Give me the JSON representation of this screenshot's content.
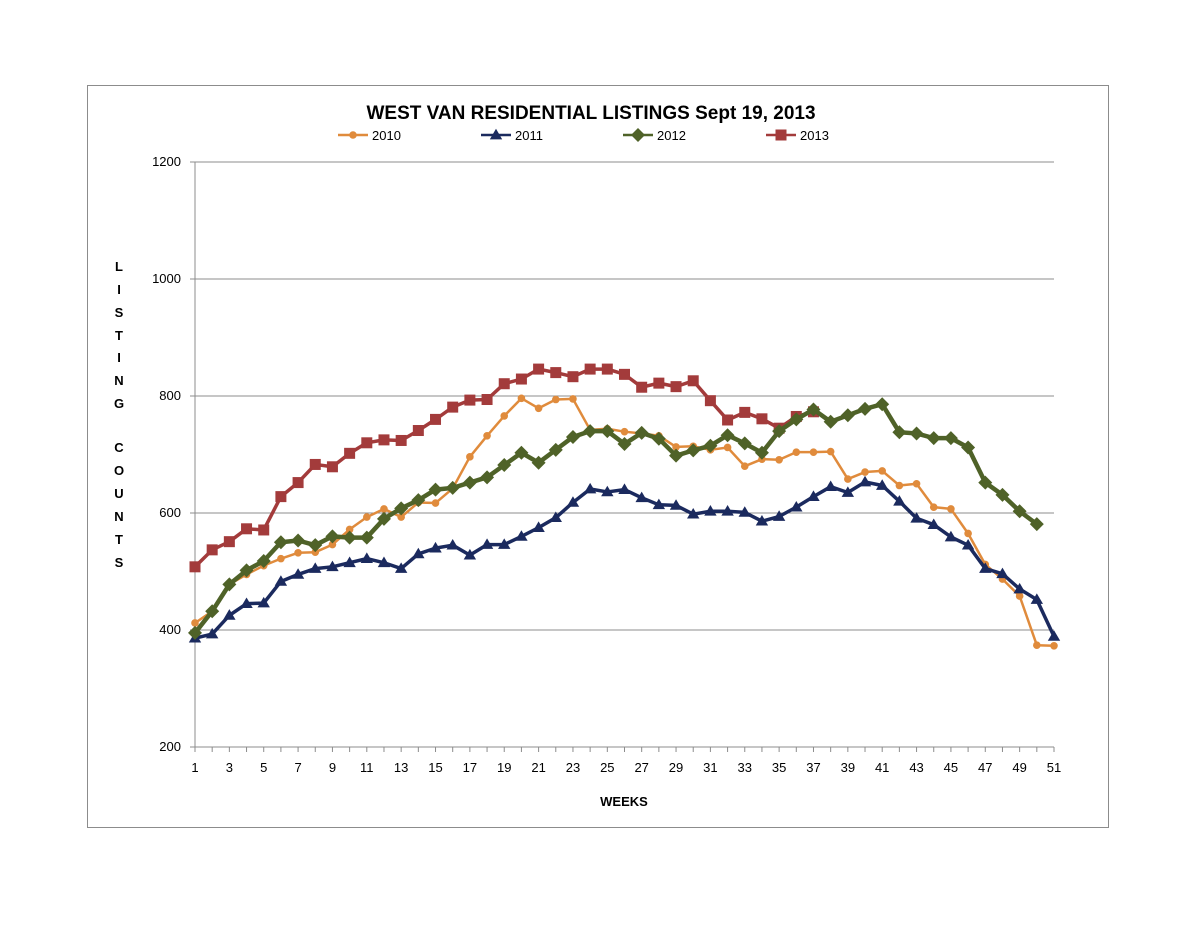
{
  "chart_data": {
    "type": "line",
    "title": "WEST VAN RESIDENTIAL LISTINGS Sept 19, 2013",
    "xlabel": "WEEKS",
    "ylabel": "LISTING COUNTS",
    "ylabel_letters": [
      "L",
      "I",
      "S",
      "T",
      "I",
      "N",
      "G",
      "C",
      "O",
      "U",
      "N",
      "T",
      "S"
    ],
    "ylim": [
      200,
      1200
    ],
    "yticks": [
      "200",
      "400",
      "600",
      "800",
      "1000",
      "1200"
    ],
    "xlim": [
      1,
      51
    ],
    "xtick_labels": [
      "1",
      "3",
      "5",
      "7",
      "9",
      "11",
      "13",
      "15",
      "17",
      "19",
      "21",
      "23",
      "25",
      "27",
      "29",
      "31",
      "33",
      "35",
      "37",
      "39",
      "41",
      "43",
      "45",
      "47",
      "49",
      "51"
    ],
    "grid": "horizontal",
    "legend_position": "top",
    "series": [
      {
        "name": "2010",
        "color": "#E08B3C",
        "marker": "circle",
        "values": [
          412,
          432,
          478,
          495,
          510,
          522,
          532,
          533,
          546,
          572,
          593,
          607,
          593,
          618,
          617,
          642,
          696,
          732,
          766,
          796,
          779,
          794,
          795,
          742,
          744,
          739,
          736,
          732,
          713,
          714,
          708,
          712,
          680,
          692,
          691,
          704,
          704,
          705,
          658,
          670,
          672,
          647,
          650,
          610,
          607,
          565,
          512,
          487,
          458,
          374,
          373
        ]
      },
      {
        "name": "2011",
        "color": "#1B2A5E",
        "marker": "triangle",
        "values": [
          386,
          393,
          425,
          445,
          446,
          483,
          495,
          505,
          508,
          515,
          522,
          515,
          505,
          530,
          540,
          545,
          528,
          546,
          546,
          560,
          575,
          592,
          618,
          641,
          636,
          640,
          626,
          614,
          613,
          598,
          603,
          603,
          601,
          586,
          594,
          610,
          628,
          645,
          635,
          653,
          647,
          620,
          591,
          580,
          559,
          545,
          505,
          496,
          470,
          452,
          389
        ]
      },
      {
        "name": "2012",
        "color": "#4F6228",
        "marker": "diamond",
        "values": [
          395,
          432,
          478,
          502,
          518,
          550,
          553,
          545,
          560,
          558,
          558,
          590,
          608,
          622,
          640,
          643,
          652,
          661,
          682,
          703,
          686,
          708,
          730,
          740,
          740,
          718,
          737,
          727,
          698,
          707,
          715,
          733,
          719,
          703,
          740,
          760,
          777,
          756,
          767,
          778,
          786,
          738,
          736,
          728,
          728,
          712,
          652,
          631,
          603,
          581
        ]
      },
      {
        "name": "2013",
        "color": "#A33B3B",
        "marker": "square",
        "values": [
          508,
          537,
          551,
          573,
          571,
          628,
          652,
          683,
          679,
          702,
          720,
          725,
          724,
          741,
          760,
          781,
          793,
          794,
          821,
          829,
          846,
          840,
          833,
          846,
          846,
          837,
          815,
          822,
          816,
          826,
          792,
          759,
          772,
          761,
          745,
          765,
          773
        ]
      }
    ]
  }
}
